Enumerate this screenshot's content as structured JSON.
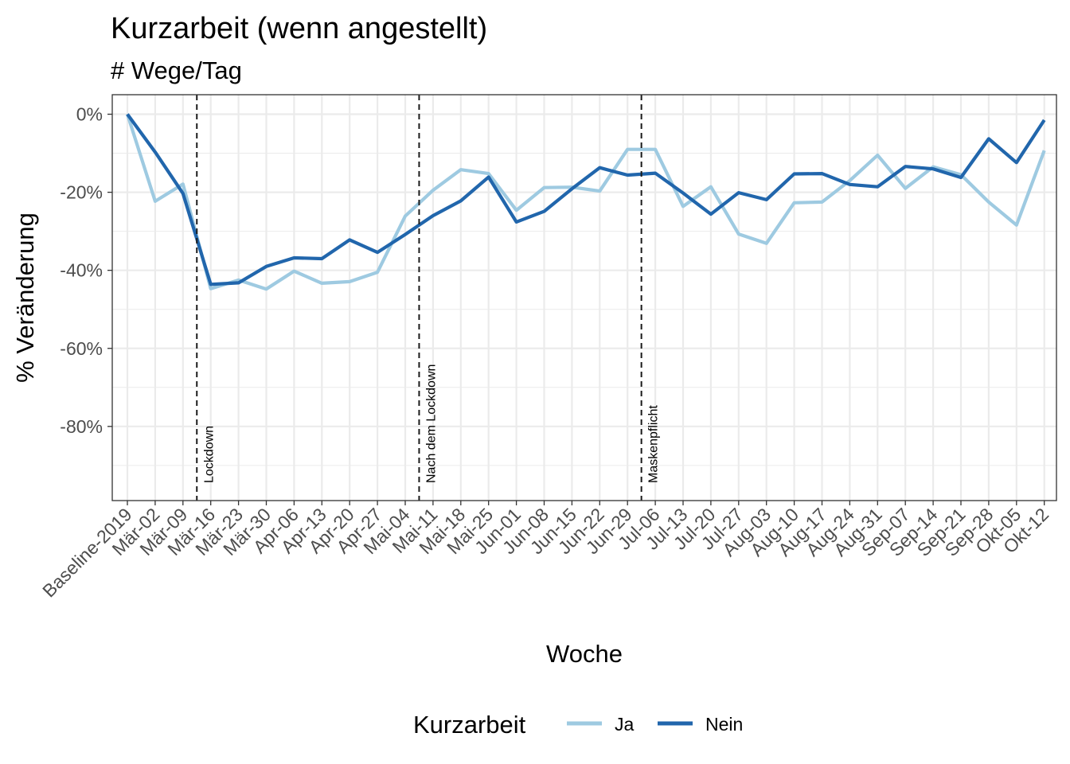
{
  "chart_data": {
    "type": "line",
    "title": "Kurzarbeit (wenn angestellt)",
    "subtitle": "# Wege/Tag",
    "xlabel": "Woche",
    "ylabel": "% Veränderung",
    "ylim": [
      -99,
      5
    ],
    "y_ticks": [
      0,
      -20,
      -40,
      -60,
      -80
    ],
    "y_tick_labels": [
      "0%",
      "-20%",
      "-40%",
      "-60%",
      "-80%"
    ],
    "grid": true,
    "legend_position": "bottom",
    "legend_title": "Kurzarbeit",
    "categories": [
      "Baseline-2019",
      "Mär-02",
      "Mär-09",
      "Mär-16",
      "Mär-23",
      "Mär-30",
      "Apr-06",
      "Apr-13",
      "Apr-20",
      "Apr-27",
      "Mai-04",
      "Mai-11",
      "Mai-18",
      "Mai-25",
      "Jun-01",
      "Jun-08",
      "Jun-15",
      "Jun-22",
      "Jun-29",
      "Jul-06",
      "Jul-13",
      "Jul-20",
      "Jul-27",
      "Aug-03",
      "Aug-10",
      "Aug-17",
      "Aug-24",
      "Aug-31",
      "Sep-07",
      "Sep-14",
      "Sep-21",
      "Sep-28",
      "Okt-05",
      "Okt-12"
    ],
    "series": [
      {
        "name": "Ja",
        "color": "#9ecae1",
        "values": [
          0,
          -22.3,
          -17.9,
          -44.7,
          -42.5,
          -44.8,
          -40.2,
          -43.3,
          -42.9,
          -40.5,
          -26.1,
          -19.5,
          -14.2,
          -15.2,
          -24.6,
          -18.8,
          -18.7,
          -19.7,
          -9.0,
          -9.0,
          -23.6,
          -18.6,
          -30.7,
          -33.1,
          -22.7,
          -22.5,
          -17.0,
          -10.5,
          -19.0,
          -13.5,
          -15.5,
          -22.5,
          -28.4,
          -9.3
        ]
      },
      {
        "name": "Nein",
        "color": "#2166ac",
        "values": [
          0,
          -9.7,
          -20.3,
          -43.6,
          -43.2,
          -39.0,
          -36.8,
          -37.0,
          -32.2,
          -35.4,
          -30.8,
          -26.0,
          -22.2,
          -16.1,
          -27.6,
          -24.9,
          -19.1,
          -13.7,
          -15.6,
          -15.1,
          -20.2,
          -25.6,
          -20.1,
          -21.9,
          -15.3,
          -15.2,
          -18.0,
          -18.6,
          -13.4,
          -14.0,
          -16.2,
          -6.3,
          -12.4,
          -1.5
        ]
      }
    ],
    "events": [
      {
        "label": "Lockdown",
        "x": 2.5
      },
      {
        "label": "Nach dem Lockdown",
        "x": 10.5
      },
      {
        "label": "Maskenpflicht",
        "x": 18.5
      }
    ]
  }
}
